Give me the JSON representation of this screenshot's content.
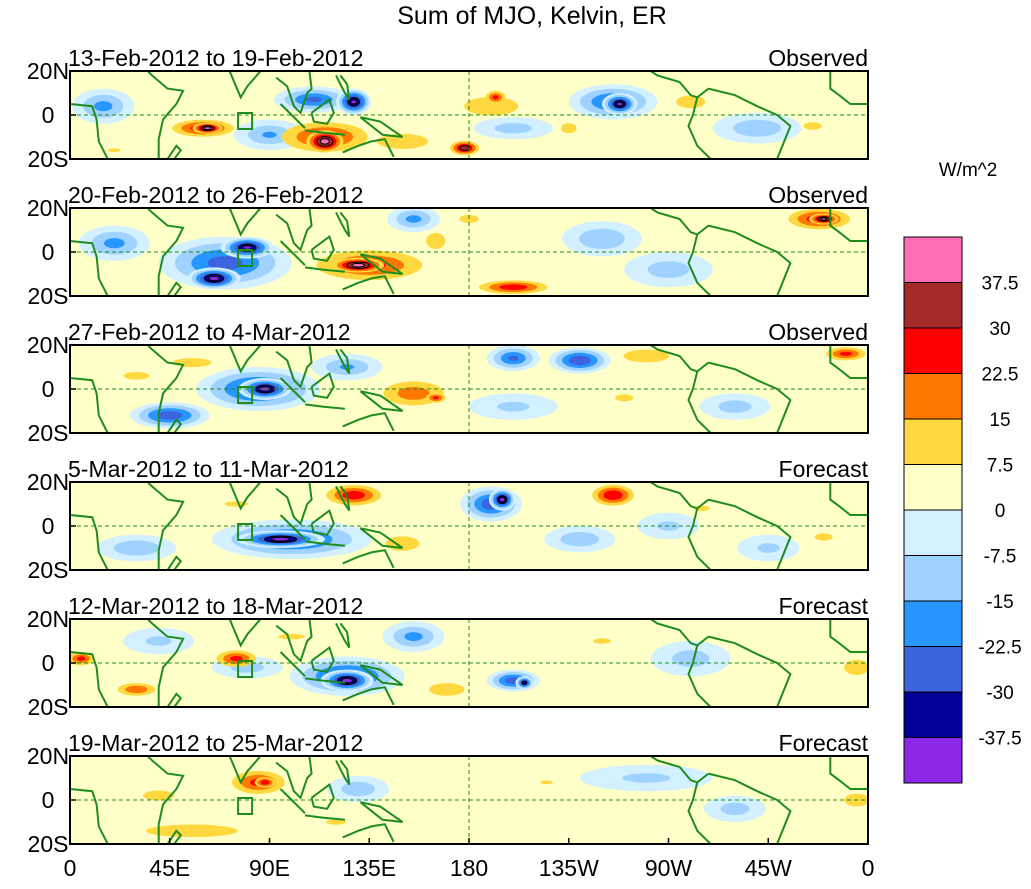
{
  "chart_data": {
    "type": "heatmap",
    "title": "Sum of MJO, Kelvin, ER",
    "units": "W/m^2",
    "x_ticks": [
      "0",
      "45E",
      "90E",
      "135E",
      "180",
      "135W",
      "90W",
      "45W",
      "0"
    ],
    "y_ticks": [
      "20N",
      "0",
      "20S"
    ],
    "xlim": [
      0,
      360
    ],
    "ylim": [
      -20,
      20
    ],
    "colorbar": {
      "levels": [
        "37.5",
        "30",
        "22.5",
        "15",
        "7.5",
        "0",
        "-7.5",
        "-15",
        "-22.5",
        "-30",
        "-37.5"
      ],
      "colors": [
        "#ff6eb4",
        "#a52a2a",
        "#ff0000",
        "#ff7800",
        "#ffd840",
        "#ffffc8",
        "#d2f0ff",
        "#a0d2ff",
        "#2896ff",
        "#3c64dc",
        "#000096",
        "#8c28e6"
      ]
    },
    "panels": [
      {
        "period": "13-Feb-2012 to 19-Feb-2012",
        "kind": "Observed",
        "features": [
          {
            "lon": 110,
            "lat": 7,
            "rx": 18,
            "ry": 6,
            "v": -24
          },
          {
            "lon": 128,
            "lat": 6,
            "rx": 8,
            "ry": 6,
            "v": -38
          },
          {
            "lon": 245,
            "lat": 6,
            "rx": 20,
            "ry": 8,
            "v": -25
          },
          {
            "lon": 248,
            "lat": 5,
            "rx": 8,
            "ry": 5,
            "v": -38
          },
          {
            "lon": 15,
            "lat": 4,
            "rx": 14,
            "ry": 8,
            "v": -18
          },
          {
            "lon": 310,
            "lat": -6,
            "rx": 20,
            "ry": 7,
            "v": -14
          },
          {
            "lon": 200,
            "lat": -6,
            "rx": 18,
            "ry": 5,
            "v": -12
          },
          {
            "lon": 90,
            "lat": -9,
            "rx": 16,
            "ry": 7,
            "v": -16
          },
          {
            "lon": 60,
            "lat": -6,
            "rx": 18,
            "ry": 5,
            "v": 28
          },
          {
            "lon": 62,
            "lat": -6,
            "rx": 8,
            "ry": 3,
            "v": 40
          },
          {
            "lon": 115,
            "lat": -10,
            "rx": 26,
            "ry": 9,
            "v": 25
          },
          {
            "lon": 115,
            "lat": -12,
            "rx": 10,
            "ry": 6,
            "v": 40
          },
          {
            "lon": 150,
            "lat": -12,
            "rx": 20,
            "ry": 6,
            "v": 15
          },
          {
            "lon": 178,
            "lat": -15,
            "rx": 8,
            "ry": 4,
            "v": 35
          },
          {
            "lon": 190,
            "lat": 4,
            "rx": 26,
            "ry": 9,
            "v": 12
          },
          {
            "lon": 192,
            "lat": 8,
            "rx": 6,
            "ry": 4,
            "v": 25
          },
          {
            "lon": 225,
            "lat": -6,
            "rx": 12,
            "ry": 8,
            "v": 9
          },
          {
            "lon": 280,
            "lat": 6,
            "rx": 18,
            "ry": 8,
            "v": 10
          },
          {
            "lon": 335,
            "lat": -5,
            "rx": 14,
            "ry": 6,
            "v": 9
          },
          {
            "lon": 20,
            "lat": -16,
            "rx": 14,
            "ry": 4,
            "v": 8
          }
        ]
      },
      {
        "period": "20-Feb-2012 to 26-Feb-2012",
        "kind": "Observed",
        "features": [
          {
            "lon": 70,
            "lat": -5,
            "rx": 30,
            "ry": 12,
            "v": -26
          },
          {
            "lon": 65,
            "lat": -12,
            "rx": 12,
            "ry": 5,
            "v": -40
          },
          {
            "lon": 80,
            "lat": 2,
            "rx": 12,
            "ry": 5,
            "v": -38
          },
          {
            "lon": 20,
            "lat": 4,
            "rx": 16,
            "ry": 8,
            "v": -18
          },
          {
            "lon": 155,
            "lat": 15,
            "rx": 12,
            "ry": 6,
            "v": -18
          },
          {
            "lon": 240,
            "lat": 6,
            "rx": 18,
            "ry": 8,
            "v": -15
          },
          {
            "lon": 270,
            "lat": -8,
            "rx": 20,
            "ry": 8,
            "v": -12
          },
          {
            "lon": 220,
            "lat": 4,
            "rx": 12,
            "ry": 8,
            "v": 7
          },
          {
            "lon": 135,
            "lat": -6,
            "rx": 32,
            "ry": 9,
            "v": 25
          },
          {
            "lon": 130,
            "lat": -6,
            "rx": 14,
            "ry": 4,
            "v": 40
          },
          {
            "lon": 165,
            "lat": 5,
            "rx": 12,
            "ry": 10,
            "v": 10
          },
          {
            "lon": 200,
            "lat": -16,
            "rx": 20,
            "ry": 4,
            "v": 28
          },
          {
            "lon": 338,
            "lat": 15,
            "rx": 18,
            "ry": 6,
            "v": 28
          },
          {
            "lon": 340,
            "lat": 15,
            "rx": 8,
            "ry": 3,
            "v": 38
          },
          {
            "lon": 295,
            "lat": 2,
            "rx": 14,
            "ry": 6,
            "v": 7
          },
          {
            "lon": 180,
            "lat": 15,
            "rx": 12,
            "ry": 5,
            "v": 10
          }
        ]
      },
      {
        "period": "27-Feb-2012 to 4-Mar-2012",
        "kind": "Observed",
        "features": [
          {
            "lon": 85,
            "lat": 0,
            "rx": 28,
            "ry": 10,
            "v": -28
          },
          {
            "lon": 88,
            "lat": 0,
            "rx": 12,
            "ry": 5,
            "v": -40
          },
          {
            "lon": 45,
            "lat": -12,
            "rx": 18,
            "ry": 6,
            "v": -28
          },
          {
            "lon": 200,
            "lat": 14,
            "rx": 12,
            "ry": 6,
            "v": -24
          },
          {
            "lon": 230,
            "lat": 13,
            "rx": 14,
            "ry": 6,
            "v": -30
          },
          {
            "lon": 125,
            "lat": 10,
            "rx": 16,
            "ry": 6,
            "v": -16
          },
          {
            "lon": 200,
            "lat": -8,
            "rx": 20,
            "ry": 6,
            "v": -10
          },
          {
            "lon": 300,
            "lat": -8,
            "rx": 16,
            "ry": 6,
            "v": -12
          },
          {
            "lon": 155,
            "lat": -2,
            "rx": 20,
            "ry": 8,
            "v": 20
          },
          {
            "lon": 165,
            "lat": -4,
            "rx": 6,
            "ry": 3,
            "v": 25
          },
          {
            "lon": 55,
            "lat": 12,
            "rx": 30,
            "ry": 7,
            "v": 9
          },
          {
            "lon": 30,
            "lat": 6,
            "rx": 20,
            "ry": 6,
            "v": 9
          },
          {
            "lon": 260,
            "lat": 15,
            "rx": 18,
            "ry": 5,
            "v": 15
          },
          {
            "lon": 350,
            "lat": 16,
            "rx": 12,
            "ry": 4,
            "v": 25
          },
          {
            "lon": 250,
            "lat": -4,
            "rx": 20,
            "ry": 8,
            "v": 8
          }
        ]
      },
      {
        "period": "5-Mar-2012 to 11-Mar-2012",
        "kind": "Forecast",
        "features": [
          {
            "lon": 100,
            "lat": -6,
            "rx": 36,
            "ry": 9,
            "v": -26
          },
          {
            "lon": 95,
            "lat": -6,
            "rx": 20,
            "ry": 4,
            "v": -40
          },
          {
            "lon": 190,
            "lat": 10,
            "rx": 14,
            "ry": 8,
            "v": -28
          },
          {
            "lon": 195,
            "lat": 12,
            "rx": 6,
            "ry": 5,
            "v": -40
          },
          {
            "lon": 30,
            "lat": -10,
            "rx": 18,
            "ry": 6,
            "v": -15
          },
          {
            "lon": 230,
            "lat": -6,
            "rx": 16,
            "ry": 6,
            "v": -14
          },
          {
            "lon": 270,
            "lat": 0,
            "rx": 14,
            "ry": 6,
            "v": -10
          },
          {
            "lon": 315,
            "lat": -10,
            "rx": 14,
            "ry": 6,
            "v": -10
          },
          {
            "lon": 128,
            "lat": 14,
            "rx": 16,
            "ry": 6,
            "v": 28
          },
          {
            "lon": 245,
            "lat": 14,
            "rx": 12,
            "ry": 6,
            "v": 30
          },
          {
            "lon": 75,
            "lat": 10,
            "rx": 26,
            "ry": 6,
            "v": 8
          },
          {
            "lon": 150,
            "lat": -8,
            "rx": 14,
            "ry": 6,
            "v": 14
          },
          {
            "lon": 285,
            "lat": 8,
            "rx": 18,
            "ry": 6,
            "v": 8
          },
          {
            "lon": 340,
            "lat": -5,
            "rx": 20,
            "ry": 8,
            "v": 8
          }
        ]
      },
      {
        "period": "12-Mar-2012 to 18-Mar-2012",
        "kind": "Forecast",
        "features": [
          {
            "lon": 125,
            "lat": -6,
            "rx": 26,
            "ry": 9,
            "v": -28
          },
          {
            "lon": 125,
            "lat": -8,
            "rx": 12,
            "ry": 5,
            "v": -40
          },
          {
            "lon": 155,
            "lat": 12,
            "rx": 14,
            "ry": 7,
            "v": -18
          },
          {
            "lon": 200,
            "lat": -8,
            "rx": 12,
            "ry": 5,
            "v": -28
          },
          {
            "lon": 205,
            "lat": -9,
            "rx": 4,
            "ry": 3,
            "v": -35
          },
          {
            "lon": 80,
            "lat": -2,
            "rx": 16,
            "ry": 5,
            "v": -12
          },
          {
            "lon": 280,
            "lat": 2,
            "rx": 18,
            "ry": 8,
            "v": -12
          },
          {
            "lon": 40,
            "lat": 10,
            "rx": 16,
            "ry": 6,
            "v": -10
          },
          {
            "lon": 75,
            "lat": 2,
            "rx": 12,
            "ry": 5,
            "v": 25
          },
          {
            "lon": 30,
            "lat": -12,
            "rx": 12,
            "ry": 4,
            "v": 22
          },
          {
            "lon": 5,
            "lat": 2,
            "rx": 8,
            "ry": 4,
            "v": 25
          },
          {
            "lon": 170,
            "lat": -12,
            "rx": 14,
            "ry": 5,
            "v": 15
          },
          {
            "lon": 100,
            "lat": 12,
            "rx": 30,
            "ry": 6,
            "v": 8
          },
          {
            "lon": 240,
            "lat": 10,
            "rx": 20,
            "ry": 6,
            "v": 8
          },
          {
            "lon": 355,
            "lat": -2,
            "rx": 10,
            "ry": 6,
            "v": 15
          }
        ]
      },
      {
        "period": "19-Mar-2012 to 25-Mar-2012",
        "kind": "Forecast",
        "features": [
          {
            "lon": 85,
            "lat": 8,
            "rx": 16,
            "ry": 7,
            "v": 25
          },
          {
            "lon": 88,
            "lat": 8,
            "rx": 6,
            "ry": 3,
            "v": 30
          },
          {
            "lon": 55,
            "lat": -14,
            "rx": 36,
            "ry": 5,
            "v": 15
          },
          {
            "lon": 40,
            "lat": 2,
            "rx": 24,
            "ry": 8,
            "v": 9
          },
          {
            "lon": 120,
            "lat": -10,
            "rx": 22,
            "ry": 6,
            "v": 8
          },
          {
            "lon": 355,
            "lat": 0,
            "rx": 10,
            "ry": 5,
            "v": 15
          },
          {
            "lon": 130,
            "lat": 5,
            "rx": 14,
            "ry": 6,
            "v": -14
          },
          {
            "lon": 260,
            "lat": 10,
            "rx": 30,
            "ry": 6,
            "v": -10
          },
          {
            "lon": 300,
            "lat": -4,
            "rx": 14,
            "ry": 6,
            "v": -12
          },
          {
            "lon": 215,
            "lat": 8,
            "rx": 14,
            "ry": 4,
            "v": 8
          }
        ]
      }
    ]
  }
}
